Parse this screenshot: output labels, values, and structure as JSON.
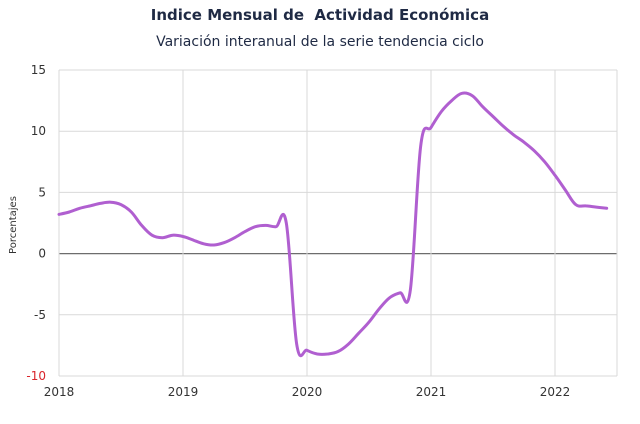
{
  "chart_data": {
    "type": "line",
    "title": "Indice Mensual de  Actividad Económica",
    "subtitle": "Variación interanual de la serie tendencia ciclo",
    "ylabel": "Porcentajes",
    "xlabel": "",
    "ylim": [
      -10,
      15
    ],
    "xlim": [
      2018,
      2022.5
    ],
    "yticks": [
      "15",
      "10",
      "5",
      "0",
      "-5",
      "-10"
    ],
    "xticks": [
      "2018",
      "2019",
      "2020",
      "2021",
      "2022"
    ],
    "grid": true,
    "colors": {
      "line": "#b05fd0",
      "grid": "#d9d9d9",
      "zero_line": "#6d6d6d",
      "negative_tick": "#d9262c",
      "text": "#1f2a44"
    },
    "series": [
      {
        "x": [
          2018.0,
          2018.083,
          2018.167,
          2018.25,
          2018.333,
          2018.417,
          2018.5,
          2018.583,
          2018.667,
          2018.75,
          2018.833,
          2018.917,
          2019.0,
          2019.083,
          2019.167,
          2019.25,
          2019.333,
          2019.417,
          2019.5,
          2019.583,
          2019.667,
          2019.75,
          2019.833,
          2019.917,
          2020.0,
          2020.083,
          2020.167,
          2020.25,
          2020.333,
          2020.417,
          2020.5,
          2020.583,
          2020.667,
          2020.75,
          2020.833,
          2020.917,
          2021.0,
          2021.083,
          2021.167,
          2021.25,
          2021.333,
          2021.417,
          2021.5,
          2021.583,
          2021.667,
          2021.75,
          2021.833,
          2021.917,
          2022.0,
          2022.083,
          2022.167,
          2022.25,
          2022.333,
          2022.417
        ],
        "values": [
          3.2,
          3.4,
          3.7,
          3.9,
          4.1,
          4.2,
          4.0,
          3.4,
          2.3,
          1.5,
          1.3,
          1.5,
          1.4,
          1.1,
          0.8,
          0.7,
          0.9,
          1.3,
          1.8,
          2.2,
          2.3,
          2.2,
          2.5,
          -7.4,
          -7.9,
          -8.2,
          -8.2,
          -8.0,
          -7.4,
          -6.5,
          -5.6,
          -4.5,
          -3.6,
          -3.2,
          -3.0,
          8.8,
          10.3,
          11.6,
          12.5,
          13.1,
          12.9,
          12.0,
          11.2,
          10.4,
          9.7,
          9.1,
          8.4,
          7.5,
          6.4,
          5.2,
          4.0,
          3.9,
          3.8,
          3.7
        ]
      }
    ]
  }
}
